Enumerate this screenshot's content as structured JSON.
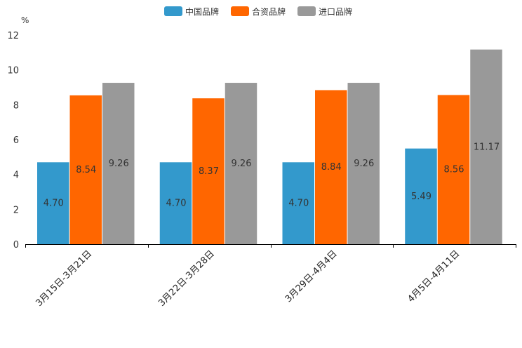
{
  "chart_data": {
    "type": "bar",
    "title": "",
    "xlabel": "",
    "ylabel": "%",
    "ylim": [
      0,
      12
    ],
    "yticks": [
      0,
      2,
      4,
      6,
      8,
      10,
      12
    ],
    "grid": false,
    "legend_position": "top-center",
    "categories": [
      "3月15日-3月21日",
      "3月22日-3月28日",
      "3月29日-4月4日",
      "4月5日-4月11日"
    ],
    "series": [
      {
        "name": "中国品牌",
        "color": "#3399cc",
        "values": [
          4.7,
          4.7,
          4.7,
          5.49
        ],
        "labels": [
          "4.70",
          "4.70",
          "4.70",
          "5.49"
        ]
      },
      {
        "name": "合资品牌",
        "color": "#ff6600",
        "values": [
          8.54,
          8.37,
          8.84,
          8.56
        ],
        "labels": [
          "8.54",
          "8.37",
          "8.84",
          "8.56"
        ]
      },
      {
        "name": "进口品牌",
        "color": "#999999",
        "values": [
          9.26,
          9.26,
          9.26,
          11.17
        ],
        "labels": [
          "9.26",
          "9.26",
          "9.26",
          "11.17"
        ]
      }
    ]
  }
}
